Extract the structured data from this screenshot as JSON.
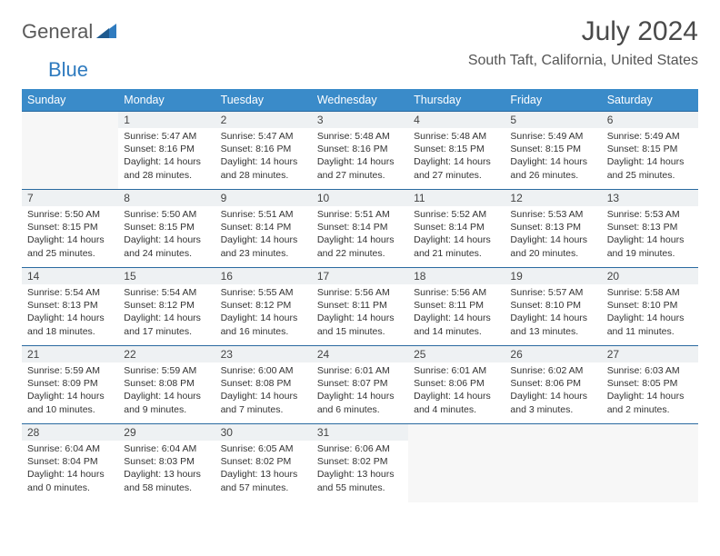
{
  "brand": {
    "part1": "General",
    "part2": "Blue"
  },
  "title": "July 2024",
  "location": "South Taft, California, United States",
  "weekdays": [
    "Sunday",
    "Monday",
    "Tuesday",
    "Wednesday",
    "Thursday",
    "Friday",
    "Saturday"
  ],
  "colors": {
    "header_bg": "#3a8bc9",
    "row_border": "#2a6aa0",
    "daynum_bg": "#eef1f3",
    "brand_accent": "#2f7bbf"
  },
  "start_offset": 1,
  "days": [
    {
      "n": 1,
      "sunrise": "5:47 AM",
      "sunset": "8:16 PM",
      "daylight": "14 hours and 28 minutes."
    },
    {
      "n": 2,
      "sunrise": "5:47 AM",
      "sunset": "8:16 PM",
      "daylight": "14 hours and 28 minutes."
    },
    {
      "n": 3,
      "sunrise": "5:48 AM",
      "sunset": "8:16 PM",
      "daylight": "14 hours and 27 minutes."
    },
    {
      "n": 4,
      "sunrise": "5:48 AM",
      "sunset": "8:15 PM",
      "daylight": "14 hours and 27 minutes."
    },
    {
      "n": 5,
      "sunrise": "5:49 AM",
      "sunset": "8:15 PM",
      "daylight": "14 hours and 26 minutes."
    },
    {
      "n": 6,
      "sunrise": "5:49 AM",
      "sunset": "8:15 PM",
      "daylight": "14 hours and 25 minutes."
    },
    {
      "n": 7,
      "sunrise": "5:50 AM",
      "sunset": "8:15 PM",
      "daylight": "14 hours and 25 minutes."
    },
    {
      "n": 8,
      "sunrise": "5:50 AM",
      "sunset": "8:15 PM",
      "daylight": "14 hours and 24 minutes."
    },
    {
      "n": 9,
      "sunrise": "5:51 AM",
      "sunset": "8:14 PM",
      "daylight": "14 hours and 23 minutes."
    },
    {
      "n": 10,
      "sunrise": "5:51 AM",
      "sunset": "8:14 PM",
      "daylight": "14 hours and 22 minutes."
    },
    {
      "n": 11,
      "sunrise": "5:52 AM",
      "sunset": "8:14 PM",
      "daylight": "14 hours and 21 minutes."
    },
    {
      "n": 12,
      "sunrise": "5:53 AM",
      "sunset": "8:13 PM",
      "daylight": "14 hours and 20 minutes."
    },
    {
      "n": 13,
      "sunrise": "5:53 AM",
      "sunset": "8:13 PM",
      "daylight": "14 hours and 19 minutes."
    },
    {
      "n": 14,
      "sunrise": "5:54 AM",
      "sunset": "8:13 PM",
      "daylight": "14 hours and 18 minutes."
    },
    {
      "n": 15,
      "sunrise": "5:54 AM",
      "sunset": "8:12 PM",
      "daylight": "14 hours and 17 minutes."
    },
    {
      "n": 16,
      "sunrise": "5:55 AM",
      "sunset": "8:12 PM",
      "daylight": "14 hours and 16 minutes."
    },
    {
      "n": 17,
      "sunrise": "5:56 AM",
      "sunset": "8:11 PM",
      "daylight": "14 hours and 15 minutes."
    },
    {
      "n": 18,
      "sunrise": "5:56 AM",
      "sunset": "8:11 PM",
      "daylight": "14 hours and 14 minutes."
    },
    {
      "n": 19,
      "sunrise": "5:57 AM",
      "sunset": "8:10 PM",
      "daylight": "14 hours and 13 minutes."
    },
    {
      "n": 20,
      "sunrise": "5:58 AM",
      "sunset": "8:10 PM",
      "daylight": "14 hours and 11 minutes."
    },
    {
      "n": 21,
      "sunrise": "5:59 AM",
      "sunset": "8:09 PM",
      "daylight": "14 hours and 10 minutes."
    },
    {
      "n": 22,
      "sunrise": "5:59 AM",
      "sunset": "8:08 PM",
      "daylight": "14 hours and 9 minutes."
    },
    {
      "n": 23,
      "sunrise": "6:00 AM",
      "sunset": "8:08 PM",
      "daylight": "14 hours and 7 minutes."
    },
    {
      "n": 24,
      "sunrise": "6:01 AM",
      "sunset": "8:07 PM",
      "daylight": "14 hours and 6 minutes."
    },
    {
      "n": 25,
      "sunrise": "6:01 AM",
      "sunset": "8:06 PM",
      "daylight": "14 hours and 4 minutes."
    },
    {
      "n": 26,
      "sunrise": "6:02 AM",
      "sunset": "8:06 PM",
      "daylight": "14 hours and 3 minutes."
    },
    {
      "n": 27,
      "sunrise": "6:03 AM",
      "sunset": "8:05 PM",
      "daylight": "14 hours and 2 minutes."
    },
    {
      "n": 28,
      "sunrise": "6:04 AM",
      "sunset": "8:04 PM",
      "daylight": "14 hours and 0 minutes."
    },
    {
      "n": 29,
      "sunrise": "6:04 AM",
      "sunset": "8:03 PM",
      "daylight": "13 hours and 58 minutes."
    },
    {
      "n": 30,
      "sunrise": "6:05 AM",
      "sunset": "8:02 PM",
      "daylight": "13 hours and 57 minutes."
    },
    {
      "n": 31,
      "sunrise": "6:06 AM",
      "sunset": "8:02 PM",
      "daylight": "13 hours and 55 minutes."
    }
  ],
  "labels": {
    "sunrise": "Sunrise:",
    "sunset": "Sunset:",
    "daylight": "Daylight:"
  }
}
